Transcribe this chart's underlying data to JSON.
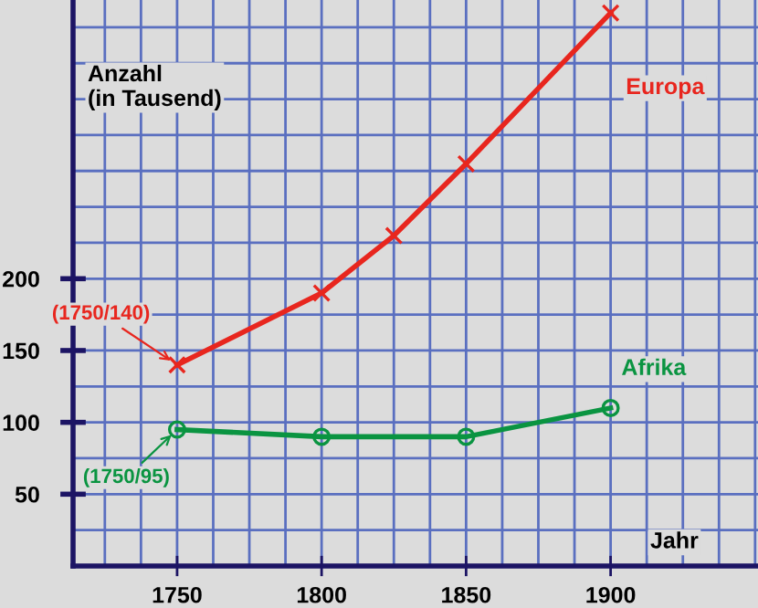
{
  "chart_data": {
    "type": "line",
    "xlabel": "Jahr",
    "ylabel": "Anzahl\n(in Tausend)",
    "xlim": [
      1714,
      1951
    ],
    "ylim": [
      0,
      394
    ],
    "xticks": [
      1750,
      1800,
      1850,
      1900
    ],
    "yticks": [
      50,
      100,
      150,
      200
    ],
    "grid": true,
    "legend": false,
    "series": [
      {
        "name": "Europa",
        "color": "#e8261e",
        "marker": "cross",
        "x": [
          1750,
          1800,
          1825,
          1850,
          1900
        ],
        "values": [
          140,
          190,
          230,
          280,
          385
        ]
      },
      {
        "name": "Afrika",
        "color": "#0a9441",
        "marker": "circle",
        "x": [
          1750,
          1800,
          1850,
          1900
        ],
        "values": [
          95,
          90,
          90,
          110
        ]
      }
    ],
    "annotations": [
      {
        "text": "(1750/140)",
        "x": 1750,
        "y": 140
      },
      {
        "text": "(1750/95)",
        "x": 1750,
        "y": 95
      }
    ]
  }
}
